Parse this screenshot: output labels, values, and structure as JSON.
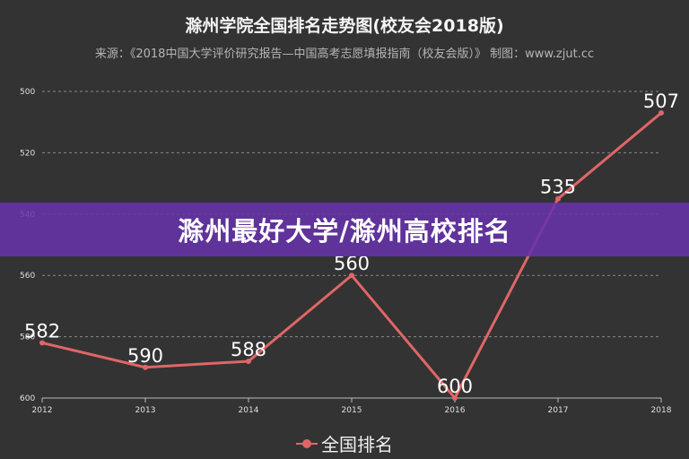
{
  "chart_data": {
    "type": "line",
    "title": "滁州学院全国排名走势图(校友会2018版)",
    "subtitle": "来源：《2018中国大学评价研究报告—中国高考志愿填报指南（校友会版）》 制图：www.zjut.cc",
    "categories": [
      "2012",
      "2013",
      "2014",
      "2015",
      "2016",
      "2017",
      "2018"
    ],
    "series": [
      {
        "name": "全国排名",
        "values": [
          582,
          590,
          588,
          560,
          600,
          535,
          507
        ]
      }
    ],
    "y_ticks": [
      "500",
      "520",
      "540",
      "560",
      "580",
      "600"
    ],
    "ylim": [
      500,
      600
    ],
    "y_inverted": true,
    "grid": true,
    "legend_position": "bottom"
  },
  "banner": {
    "text": "滁州最好大学/滁州高校排名"
  },
  "colors": {
    "background": "#333333",
    "series": "#e06666",
    "grid": "#8a8a8a",
    "axis_text": "#e0e0e0",
    "label_text": "#ffffff",
    "banner": "#6633aa"
  }
}
